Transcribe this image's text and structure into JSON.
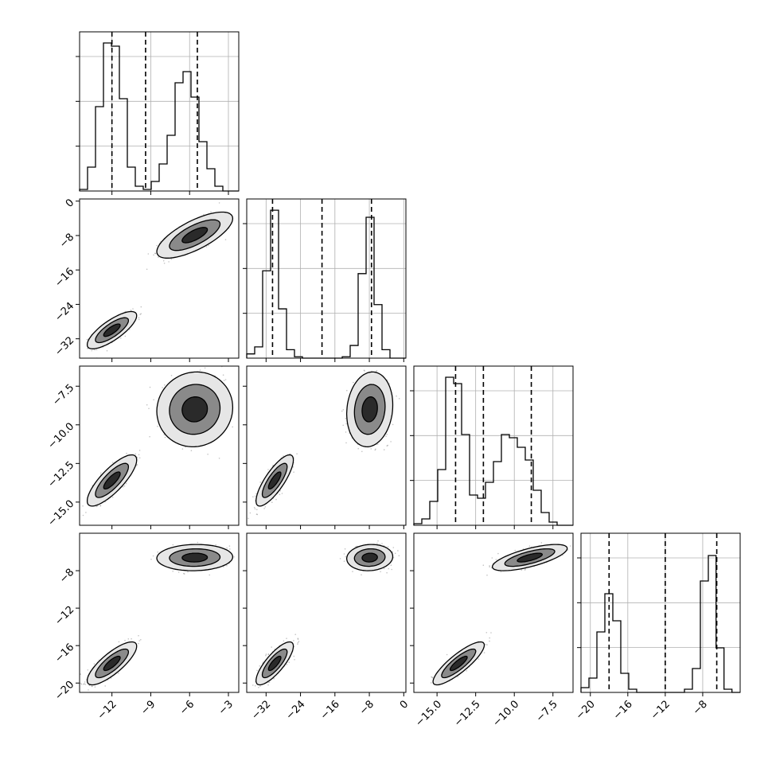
{
  "chart_data": {
    "type": "corner",
    "grid": true,
    "dimensions": [
      {
        "range": [
          -14.5,
          -2.2
        ],
        "ticks": [
          -12,
          -9,
          -6,
          -3
        ],
        "tick_labels": [
          "−12",
          "−9",
          "−6",
          "−3"
        ],
        "quantiles": [
          -12.0,
          -9.4,
          -5.4
        ],
        "histogram": {
          "bin_edges": [
            -14.5,
            -13.885,
            -13.27,
            -12.655,
            -12.04,
            -11.425,
            -10.81,
            -10.195,
            -9.58,
            -8.965,
            -8.35,
            -7.735,
            -7.12,
            -6.505,
            -5.89,
            -5.275,
            -4.66,
            -4.045,
            -3.43,
            -2.815,
            -2.2
          ],
          "counts": [
            1,
            15,
            53,
            93,
            91,
            58,
            15,
            3,
            1,
            6,
            17,
            35,
            68,
            75,
            59,
            31,
            14,
            3,
            0,
            0
          ],
          "ymax": 100
        }
      },
      {
        "range": [
          -36.5,
          0.5
        ],
        "ticks": [
          -32,
          -24,
          -16,
          -8,
          0
        ],
        "tick_labels": [
          "−32",
          "−24",
          "−16",
          "−8",
          "0"
        ],
        "quantiles": [
          -30.5,
          -19.0,
          -7.5
        ],
        "histogram": {
          "bin_edges": [
            -36.5,
            -34.65,
            -32.8,
            -30.95,
            -29.1,
            -27.25,
            -25.4,
            -23.55,
            -21.7,
            -19.85,
            -18.0,
            -16.15,
            -14.3,
            -12.45,
            -10.6,
            -8.75,
            -6.9,
            -5.05,
            -3.2,
            -1.35,
            0.5
          ],
          "counts": [
            3,
            8,
            62,
            105,
            35,
            6,
            1,
            0,
            0,
            0,
            0,
            0,
            1,
            9,
            60,
            100,
            38,
            6,
            0,
            0
          ],
          "ymax": 113
        }
      },
      {
        "range": [
          -16.5,
          -6.2
        ],
        "ticks": [
          -15.0,
          -12.5,
          -10.0,
          -7.5
        ],
        "tick_labels": [
          "−15.0",
          "−12.5",
          "−10.0",
          "−7.5"
        ],
        "quantiles": [
          -13.8,
          -12.0,
          -8.9
        ],
        "histogram": {
          "bin_edges": [
            -16.5,
            -15.985,
            -15.47,
            -14.955,
            -14.44,
            -13.925,
            -13.41,
            -12.895,
            -12.38,
            -11.865,
            -11.35,
            -10.835,
            -10.32,
            -9.805,
            -9.29,
            -8.775,
            -8.26,
            -7.745,
            -7.23,
            -6.715,
            -6.2
          ],
          "counts": [
            1,
            4,
            15,
            35,
            93,
            89,
            57,
            19,
            17,
            27,
            40,
            57,
            55,
            49,
            41,
            22,
            8,
            2,
            0,
            0
          ],
          "ymax": 100
        }
      },
      {
        "range": [
          -21.0,
          -4.0
        ],
        "ticks": [
          -20,
          -16,
          -12,
          -8
        ],
        "tick_labels": [
          "−20",
          "−16",
          "−12",
          "−8"
        ],
        "quantiles": [
          -18.0,
          -12.0,
          -6.5
        ],
        "histogram": {
          "bin_edges": [
            -21.0,
            -20.15,
            -19.3,
            -18.45,
            -17.6,
            -16.75,
            -15.9,
            -15.05,
            -14.2,
            -13.35,
            -12.5,
            -11.65,
            -10.8,
            -9.95,
            -9.1,
            -8.25,
            -7.4,
            -6.575,
            -5.725,
            -4.875,
            -4.0
          ],
          "counts": [
            3,
            9,
            38,
            62,
            45,
            12,
            2,
            0,
            0,
            0,
            0,
            0,
            0,
            2,
            15,
            70,
            86,
            28,
            2,
            0
          ],
          "ymax": 100
        }
      }
    ],
    "pairs": [
      {
        "row": 1,
        "col": 0,
        "clusters": [
          {
            "mean": [
              -12.0,
              -30.0
            ],
            "sd": [
              0.75,
              1.7
            ],
            "corr": 0.78
          },
          {
            "mean": [
              -5.6,
              -7.9
            ],
            "sd": [
              1.15,
              2.1
            ],
            "corr": 0.72
          }
        ]
      },
      {
        "row": 2,
        "col": 0,
        "clusters": [
          {
            "mean": [
              -12.0,
              -13.6
            ],
            "sd": [
              0.75,
              0.65
            ],
            "corr": 0.8
          },
          {
            "mean": [
              -5.6,
              -9.0
            ],
            "sd": [
              1.15,
              0.95
            ],
            "corr": 0.05
          }
        ]
      },
      {
        "row": 2,
        "col": 1,
        "clusters": [
          {
            "mean": [
              -30.0,
              -13.6
            ],
            "sd": [
              1.7,
              0.65
            ],
            "corr": 0.8
          },
          {
            "mean": [
              -7.9,
              -9.0
            ],
            "sd": [
              2.1,
              0.95
            ],
            "corr": 0.12
          }
        ]
      },
      {
        "row": 3,
        "col": 0,
        "clusters": [
          {
            "mean": [
              -12.0,
              -17.9
            ],
            "sd": [
              0.75,
              0.9
            ],
            "corr": 0.8
          },
          {
            "mean": [
              -5.6,
              -6.6
            ],
            "sd": [
              1.15,
              0.55
            ],
            "corr": 0.05
          }
        ]
      },
      {
        "row": 3,
        "col": 1,
        "clusters": [
          {
            "mean": [
              -30.0,
              -17.9
            ],
            "sd": [
              1.7,
              0.9
            ],
            "corr": 0.8
          },
          {
            "mean": [
              -7.9,
              -6.6
            ],
            "sd": [
              2.1,
              0.55
            ],
            "corr": 0.08
          }
        ]
      },
      {
        "row": 3,
        "col": 2,
        "clusters": [
          {
            "mean": [
              -13.6,
              -17.9
            ],
            "sd": [
              0.65,
              0.9
            ],
            "corr": 0.85
          },
          {
            "mean": [
              -9.0,
              -6.6
            ],
            "sd": [
              0.95,
              0.55
            ],
            "corr": 0.7
          }
        ]
      }
    ],
    "colors": {
      "histogram": "#000000",
      "quantile_line": "#000000",
      "contour": "#000000",
      "points": "#555555",
      "grid": "#b0b0b0"
    }
  }
}
